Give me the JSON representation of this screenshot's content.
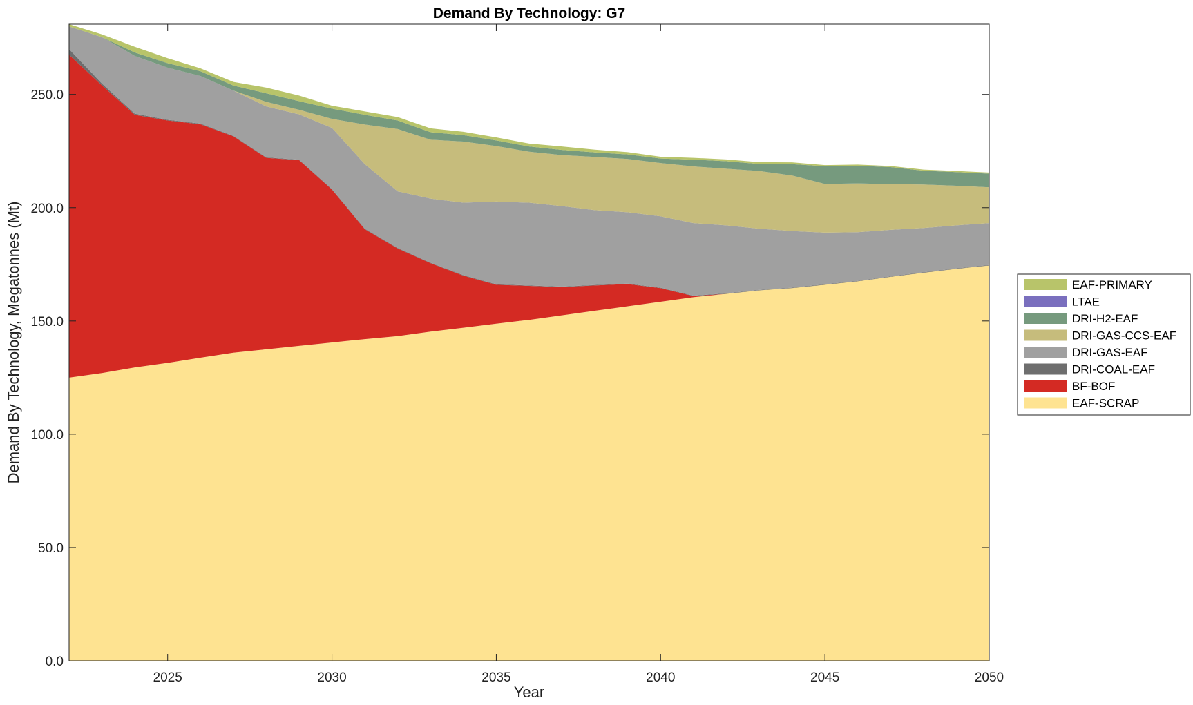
{
  "chart_data": {
    "type": "area",
    "stacked": true,
    "title": "Demand By Technology: G7",
    "xlabel": "Year",
    "ylabel": "Demand By Technology, Megatonnes (Mt)",
    "xlim": [
      2022,
      2050
    ],
    "ylim": [
      0,
      281
    ],
    "xticks": [
      2025,
      2030,
      2035,
      2040,
      2045,
      2050
    ],
    "xtick_labels": [
      "2025",
      "2030",
      "2035",
      "2040",
      "2045",
      "2050"
    ],
    "yticks": [
      0,
      50,
      100,
      150,
      200,
      250
    ],
    "ytick_labels": [
      "0.0",
      "50.0",
      "100.0",
      "150.0",
      "200.0",
      "250.0"
    ],
    "legend_position": "right",
    "x": [
      2022,
      2023,
      2024,
      2025,
      2026,
      2027,
      2028,
      2029,
      2030,
      2031,
      2032,
      2033,
      2034,
      2035,
      2036,
      2037,
      2038,
      2039,
      2040,
      2041,
      2042,
      2043,
      2044,
      2045,
      2046,
      2047,
      2048,
      2049,
      2050
    ],
    "series": [
      {
        "name": "EAF-SCRAP",
        "color": "#fee391",
        "values": [
          125,
          127,
          129.5,
          131.5,
          133.8,
          136,
          137.5,
          139,
          140.5,
          142,
          143.3,
          145.3,
          147,
          148.8,
          150.5,
          152.5,
          154.5,
          156.5,
          158.5,
          160.5,
          162,
          163.5,
          164.5,
          166,
          167.5,
          169.5,
          171.3,
          173,
          174.5
        ]
      },
      {
        "name": "BF-BOF",
        "color": "#d42a23",
        "values": [
          142.5,
          127,
          111.5,
          107,
          103,
          95.5,
          84.5,
          82,
          67.5,
          48.5,
          38.7,
          30.2,
          23,
          17.2,
          15,
          12.5,
          11.2,
          9.8,
          6,
          0.5,
          0,
          0,
          0,
          0,
          0,
          0,
          0,
          0,
          0
        ]
      },
      {
        "name": "DRI-COAL-EAF",
        "color": "#6e6e6e",
        "values": [
          2.5,
          0.8,
          0.5,
          0.3,
          0.3,
          0.2,
          0.2,
          0.2,
          0.2,
          0.2,
          0.2,
          0.2,
          0.2,
          0.2,
          0.2,
          0.2,
          0.2,
          0.2,
          0.2,
          0.2,
          0.2,
          0.2,
          0.2,
          0.2,
          0.2,
          0.2,
          0.2,
          0.2,
          0.2
        ]
      },
      {
        "name": "DRI-GAS-EAF",
        "color": "#a0a0a0",
        "values": [
          10,
          20.5,
          25.5,
          23,
          21,
          20,
          22.5,
          20,
          27,
          28.5,
          25,
          28.3,
          32,
          36.5,
          36.5,
          35.5,
          33,
          31.5,
          31.5,
          32,
          30,
          27,
          25,
          22.8,
          21.5,
          20.5,
          19.5,
          19,
          18.5
        ]
      },
      {
        "name": "DRI-GAS-CCS-EAF",
        "color": "#c6bc7c",
        "values": [
          0,
          0,
          0,
          0,
          0,
          0,
          2,
          2,
          4,
          17.5,
          27.5,
          26,
          27,
          24.5,
          22.5,
          22.5,
          23.5,
          23.5,
          23.5,
          25,
          25,
          25.5,
          24.5,
          21.5,
          21.5,
          20.2,
          19.2,
          17.5,
          15.8
        ]
      },
      {
        "name": "DRI-H2-EAF",
        "color": "#769a7e",
        "values": [
          0,
          0,
          1.5,
          2,
          2.1,
          2.2,
          3.8,
          3.8,
          4.5,
          4.3,
          3.8,
          3.3,
          2.8,
          2.5,
          2.3,
          2.3,
          2,
          2,
          2,
          3,
          3.3,
          3.1,
          5,
          7.8,
          7.8,
          7.5,
          6.1,
          6,
          6
        ]
      },
      {
        "name": "LTAE",
        "color": "#7a6fbe",
        "values": [
          0,
          0,
          0,
          0,
          0,
          0,
          0,
          0,
          0,
          0,
          0,
          0,
          0,
          0,
          0,
          0,
          0,
          0,
          0,
          0,
          0,
          0,
          0,
          0,
          0,
          0,
          0,
          0,
          0
        ]
      },
      {
        "name": "EAF-PRIMARY",
        "color": "#b8c46a",
        "values": [
          1,
          1.2,
          2.5,
          2.2,
          1.3,
          1.6,
          2.5,
          2.5,
          1.3,
          1.5,
          1.5,
          1.7,
          1.5,
          1.3,
          1.3,
          1.5,
          1.2,
          1,
          0.8,
          0.8,
          0.8,
          0.8,
          0.8,
          0.5,
          0.5,
          0.5,
          0.5,
          0.5,
          0.5
        ]
      }
    ]
  }
}
